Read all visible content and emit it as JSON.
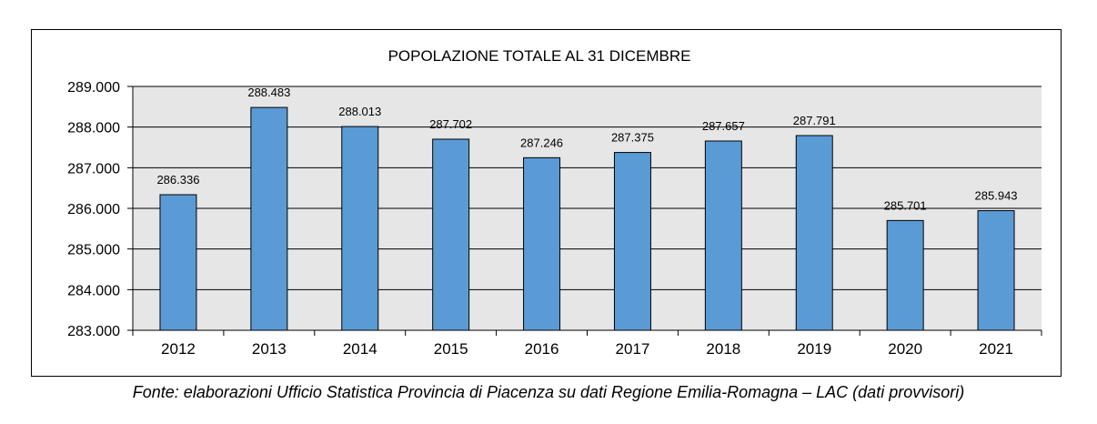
{
  "chart_data": {
    "type": "bar",
    "title": "POPOLAZIONE TOTALE AL 31 DICEMBRE",
    "xlabel": "",
    "ylabel": "",
    "categories": [
      "2012",
      "2013",
      "2014",
      "2015",
      "2016",
      "2017",
      "2018",
      "2019",
      "2020",
      "2021"
    ],
    "values": [
      286336,
      288483,
      288013,
      287702,
      287246,
      287375,
      287657,
      287791,
      285701,
      285943
    ],
    "value_labels": [
      "286.336",
      "288.483",
      "288.013",
      "287.702",
      "287.246",
      "287.375",
      "287.657",
      "287.791",
      "285.701",
      "285.943"
    ],
    "ylim": [
      283000,
      289000
    ],
    "yticks": [
      283000,
      284000,
      285000,
      286000,
      287000,
      288000,
      289000
    ],
    "ytick_labels": [
      "283.000",
      "284.000",
      "285.000",
      "286.000",
      "287.000",
      "288.000",
      "289.000"
    ],
    "grid": true,
    "legend": "none",
    "colors": {
      "bar": "#5b9bd5",
      "bar_edge": "#000000",
      "plot_bg": "#e6e6e6",
      "grid": "#000000"
    }
  },
  "source_note": "Fonte: elaborazioni Ufficio Statistica Provincia di Piacenza su dati Regione Emilia-Romagna – LAC (dati provvisori)"
}
